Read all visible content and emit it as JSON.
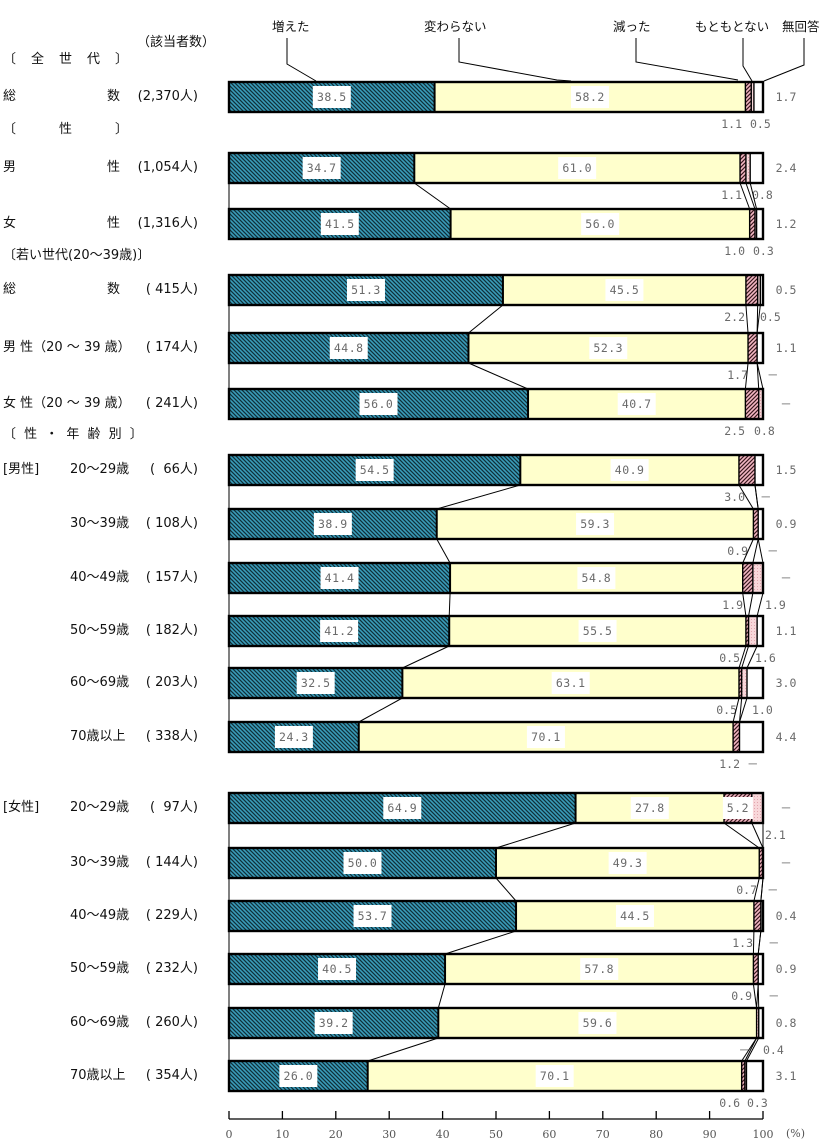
{
  "legend": {
    "items": [
      {
        "key": "increased",
        "label": "増えた"
      },
      {
        "key": "unchanged",
        "label": "変わらない"
      },
      {
        "key": "decreased",
        "label": "減った"
      },
      {
        "key": "none_originally",
        "label": "もともとない"
      },
      {
        "key": "no_answer",
        "label": "無回答"
      }
    ]
  },
  "count_header": "（該当者数）",
  "section_headers": [
    "〔　全　世　代　〕",
    "〔　　　性　　　〕",
    "〔若い世代(20～39歳)〕",
    "〔 性 ・ 年 齢 別 〕"
  ],
  "rows": [
    {
      "group": "",
      "name": "総　　　　　　　数",
      "n": "(2,370人)"
    },
    {
      "group": "",
      "name": "男　　　　　　　性",
      "n": "(1,054人)"
    },
    {
      "group": "",
      "name": "女　　　　　　　性",
      "n": "(1,316人)"
    },
    {
      "group": "",
      "name": "総　　　　　　　数",
      "n": "( 415人)"
    },
    {
      "group": "",
      "name": "男 性（20 ～ 39 歳）",
      "n": "( 174人)"
    },
    {
      "group": "",
      "name": "女 性（20 ～ 39 歳）",
      "n": "( 241人)"
    },
    {
      "group": "[男性]",
      "name": "20～29歳",
      "n": "(  66人)"
    },
    {
      "group": "",
      "name": "30～39歳",
      "n": "( 108人)"
    },
    {
      "group": "",
      "name": "40～49歳",
      "n": "( 157人)"
    },
    {
      "group": "",
      "name": "50～59歳",
      "n": "( 182人)"
    },
    {
      "group": "",
      "name": "60～69歳",
      "n": "( 203人)"
    },
    {
      "group": "",
      "name": "70歳以上",
      "n": "( 338人)"
    },
    {
      "group": "[女性]",
      "name": "20～29歳",
      "n": "(  97人)"
    },
    {
      "group": "",
      "name": "30～39歳",
      "n": "( 144人)"
    },
    {
      "group": "",
      "name": "40～49歳",
      "n": "( 229人)"
    },
    {
      "group": "",
      "name": "50～59歳",
      "n": "( 232人)"
    },
    {
      "group": "",
      "name": "60～69歳",
      "n": "( 260人)"
    },
    {
      "group": "",
      "name": "70歳以上",
      "n": "( 354人)"
    }
  ],
  "colors": {
    "increased": "#3a9dbb",
    "increased_hatch": "#10303a",
    "unchanged": "#ffffcc",
    "decreased": "#f4b8c4",
    "decreased_hatch": "#3a1a1f",
    "none_originally": "#f8d7da",
    "no_answer": "#ffffff"
  },
  "chart_data": {
    "type": "bar",
    "orientation": "horizontal",
    "stacked": true,
    "title": "",
    "xlabel": "(%)",
    "ylabel": "",
    "xlim": [
      0,
      100
    ],
    "xticks": [
      0,
      10,
      20,
      30,
      40,
      50,
      60,
      70,
      80,
      90,
      100
    ],
    "grid": false,
    "legend_position": "top",
    "categories": [
      "全世代 総数 (2,370人)",
      "性 男性 (1,054人)",
      "性 女性 (1,316人)",
      "若い世代 総数 (415人)",
      "若い世代 男性(20～39歳) (174人)",
      "若い世代 女性(20～39歳) (241人)",
      "男性 20～29歳 (66人)",
      "男性 30～39歳 (108人)",
      "男性 40～49歳 (157人)",
      "男性 50～59歳 (182人)",
      "男性 60～69歳 (203人)",
      "男性 70歳以上 (338人)",
      "女性 20～29歳 (97人)",
      "女性 30～39歳 (144人)",
      "女性 40～49歳 (229人)",
      "女性 50～59歳 (232人)",
      "女性 60～69歳 (260人)",
      "女性 70歳以上 (354人)"
    ],
    "series": [
      {
        "name": "増えた",
        "key": "increased",
        "values": [
          38.5,
          34.7,
          41.5,
          51.3,
          44.8,
          56.0,
          54.5,
          38.9,
          41.4,
          41.2,
          32.5,
          24.3,
          64.9,
          50.0,
          53.7,
          40.5,
          39.2,
          26.0
        ],
        "labels": [
          "38.5",
          "34.7",
          "41.5",
          "51.3",
          "44.8",
          "56.0",
          "54.5",
          "38.9",
          "41.4",
          "41.2",
          "32.5",
          "24.3",
          "64.9",
          "50.0",
          "53.7",
          "40.5",
          "39.2",
          "26.0"
        ]
      },
      {
        "name": "変わらない",
        "key": "unchanged",
        "values": [
          58.2,
          61.0,
          56.0,
          45.5,
          52.3,
          40.7,
          40.9,
          59.3,
          54.8,
          55.5,
          63.1,
          70.1,
          27.8,
          49.3,
          44.5,
          57.8,
          59.6,
          70.1
        ],
        "labels": [
          "58.2",
          "61.0",
          "56.0",
          "45.5",
          "52.3",
          "40.7",
          "40.9",
          "59.3",
          "54.8",
          "55.5",
          "63.1",
          "70.1",
          "27.8",
          "49.3",
          "44.5",
          "57.8",
          "59.6",
          "70.1"
        ]
      },
      {
        "name": "減った",
        "key": "decreased",
        "values": [
          1.1,
          1.1,
          1.0,
          2.2,
          1.7,
          2.5,
          3.0,
          0.9,
          1.9,
          0.5,
          0.5,
          1.2,
          5.2,
          0.7,
          1.3,
          0.9,
          0,
          0.6
        ],
        "labels": [
          "1.1",
          "1.1",
          "1.0",
          "2.2",
          "1.7",
          "2.5",
          "3.0",
          "0.9",
          "1.9",
          "0.5",
          "0.5",
          "1.2",
          "5.2",
          "0.7",
          "1.3",
          "0.9",
          "－",
          "0.6"
        ]
      },
      {
        "name": "もともとない",
        "key": "none_originally",
        "values": [
          0.5,
          0.8,
          0.3,
          0.5,
          0,
          0.8,
          0,
          0,
          1.9,
          1.6,
          1.0,
          0,
          2.1,
          0,
          0,
          0,
          0.4,
          0.3
        ],
        "labels": [
          "0.5",
          "0.8",
          "0.3",
          "0.5",
          "－",
          "0.8",
          "－",
          "－",
          "1.9",
          "1.6",
          "1.0",
          "－",
          "2.1",
          "－",
          "－",
          "－",
          "0.4",
          "0.3"
        ]
      },
      {
        "name": "無回答",
        "key": "no_answer",
        "values": [
          1.7,
          2.4,
          1.2,
          0.5,
          1.1,
          0,
          1.5,
          0.9,
          0,
          1.1,
          3.0,
          4.4,
          0,
          0,
          0.4,
          0.9,
          0.8,
          3.1
        ],
        "labels": [
          "1.7",
          "2.4",
          "1.2",
          "0.5",
          "1.1",
          "－",
          "1.5",
          "0.9",
          "－",
          "1.1",
          "3.0",
          "4.4",
          "－",
          "－",
          "0.4",
          "0.9",
          "0.8",
          "3.1"
        ]
      }
    ]
  }
}
